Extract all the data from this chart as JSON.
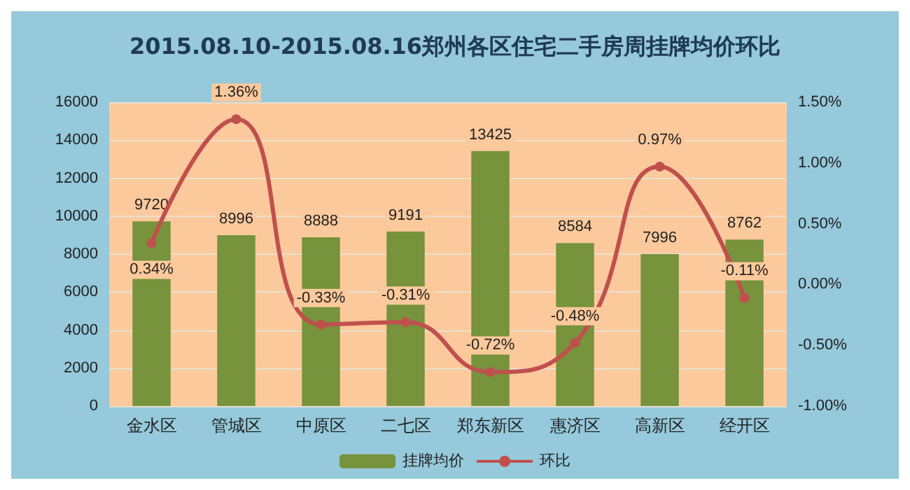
{
  "chart_data": {
    "type": "bar",
    "title": "2015.08.10-2015.08.16郑州各区住宅二手房周挂牌均价环比",
    "categories": [
      "金水区",
      "管城区",
      "中原区",
      "二七区",
      "郑东新区",
      "惠济区",
      "高新区",
      "经开区"
    ],
    "series": [
      {
        "name": "挂牌均价",
        "color": "#77933c",
        "values": [
          9720,
          8996,
          8888,
          9191,
          13425,
          8584,
          7996,
          8762
        ],
        "value_labels": [
          "9720",
          "8996",
          "8888",
          "9191",
          "13425",
          "8584",
          "7996",
          "8762"
        ]
      },
      {
        "name": "环比",
        "type": "line",
        "axis": "y2",
        "color": "#c0504d",
        "values": [
          0.34,
          1.36,
          -0.33,
          -0.31,
          -0.72,
          -0.48,
          0.97,
          -0.11
        ],
        "value_labels": [
          "0.34%",
          "1.36%",
          "-0.33%",
          "-0.31%",
          "-0.72%",
          "-0.48%",
          "0.97%",
          "-0.11%"
        ]
      }
    ],
    "ylim": [
      0,
      16000
    ],
    "yticks": [
      0,
      2000,
      4000,
      6000,
      8000,
      10000,
      12000,
      14000,
      16000
    ],
    "y2lim": [
      -1,
      1.5
    ],
    "y2ticks": [
      {
        "value": -1,
        "label": "-1.00%"
      },
      {
        "value": -0.5,
        "label": "-0.50%"
      },
      {
        "value": 0,
        "label": "0.00%"
      },
      {
        "value": 0.5,
        "label": "0.50%"
      },
      {
        "value": 1,
        "label": "1.00%"
      },
      {
        "value": 1.5,
        "label": "1.50%"
      }
    ],
    "grid": "y",
    "legend": "bottom",
    "marker": "circle",
    "line_style": "solid"
  }
}
